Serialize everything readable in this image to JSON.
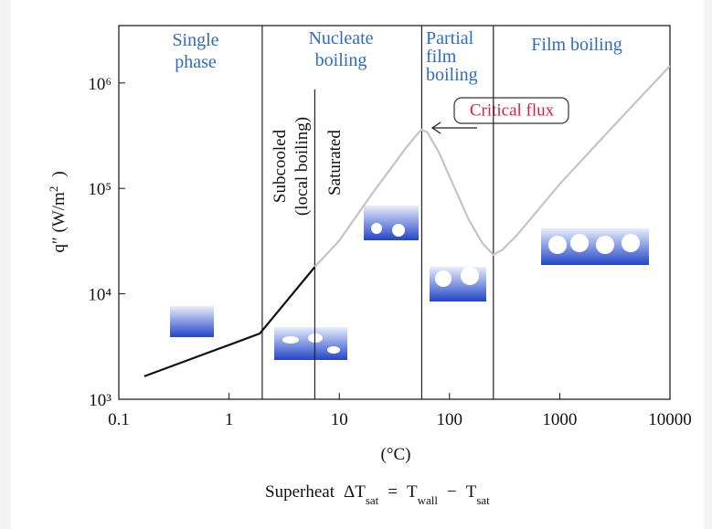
{
  "chart_data": {
    "type": "line",
    "log_x": true,
    "log_y": true,
    "xlim": [
      0.1,
      10000
    ],
    "xticks": [
      0.1,
      1,
      10,
      100,
      1000,
      10000
    ],
    "ylim": [
      1000,
      3500000
    ],
    "yticks": [
      {
        "value": 1000,
        "label": "10³"
      },
      {
        "value": 10000,
        "label": "10⁴"
      },
      {
        "value": 100000,
        "label": "10⁵"
      },
      {
        "value": 1000000,
        "label": "10⁶"
      }
    ],
    "x_unit": "(°C)",
    "x_label": [
      {
        "text": "Superheat"
      },
      {
        "text": "ΔT"
      },
      {
        "text": "sat",
        "sub": true
      },
      {
        "text": "="
      },
      {
        "text": "T"
      },
      {
        "text": "wall",
        "sub": true
      },
      {
        "text": "−"
      },
      {
        "text": "T"
      },
      {
        "text": "sat",
        "sub": true
      }
    ],
    "y_label": [
      {
        "text": "q″ (W/m"
      },
      {
        "text": "2",
        "sup": true
      },
      {
        "text": ")"
      }
    ],
    "series": [
      {
        "color": "#111111",
        "x": [
          0.17,
          1.9,
          6
        ],
        "values": [
          1650,
          4200,
          18000
        ]
      },
      {
        "color": "#c4c4c4",
        "x": [
          6,
          10,
          20,
          40,
          50,
          56,
          63,
          80,
          100,
          150,
          200,
          250,
          300,
          400,
          1000,
          3000,
          10000
        ],
        "values": [
          18000,
          32000,
          90000,
          240000,
          320000,
          360000,
          340000,
          220000,
          130000,
          50000,
          30000,
          23500,
          26000,
          35000,
          110000,
          380000,
          1450000
        ]
      }
    ],
    "vlines": [
      {
        "x": 2
      },
      {
        "x": 6,
        "y_top": 870000
      },
      {
        "x": 56
      },
      {
        "x": 250
      }
    ],
    "regions": [
      [
        "Single",
        "phase"
      ],
      [
        "Nucleate",
        "boiling"
      ],
      [
        "Partial",
        "film",
        "boiling"
      ],
      [
        "Film boiling"
      ]
    ],
    "sub_labels": [
      [
        "Subcooled",
        "(local boiling)"
      ],
      [
        "Saturated"
      ]
    ],
    "annotation": "Critical flux"
  }
}
